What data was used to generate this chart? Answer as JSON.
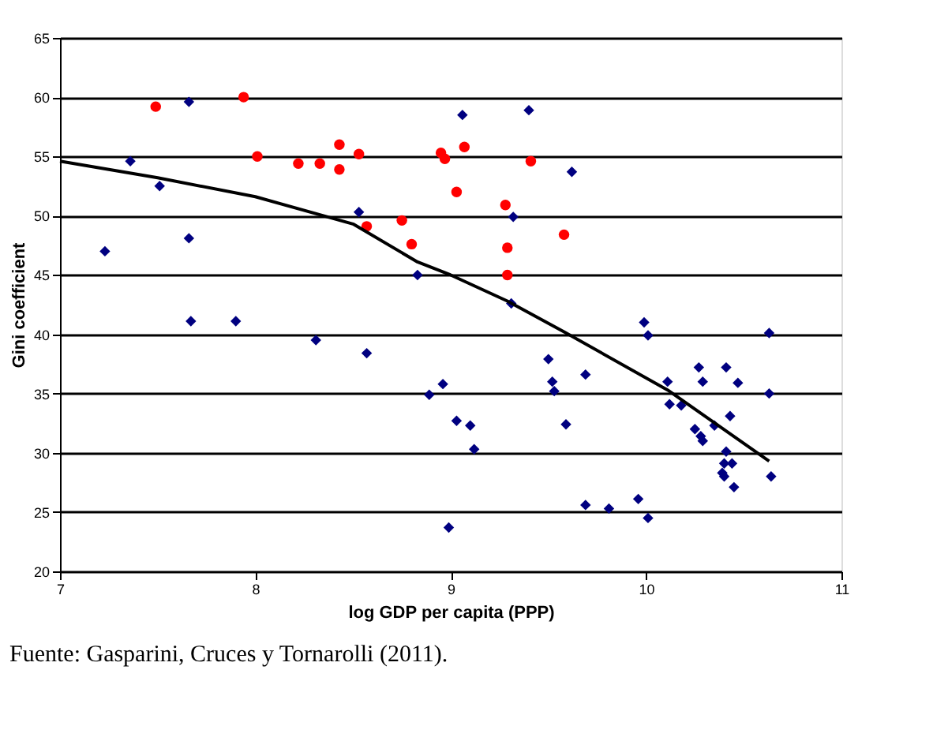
{
  "chart_data": {
    "type": "scatter",
    "xlabel": "log GDP per capita (PPP)",
    "ylabel": "Gini coefficient",
    "annotations": [
      "Fuente: Gasparini, Cruces y Tornarolli (2011)."
    ],
    "xlim": [
      7,
      11
    ],
    "xticks": [
      7,
      8,
      9,
      10,
      11
    ],
    "ylim": [
      20,
      65
    ],
    "yticks": [
      20,
      25,
      30,
      35,
      40,
      45,
      50,
      55,
      60,
      65
    ],
    "grid": "y",
    "series": [
      {
        "marker": "diamond",
        "color": "#000080",
        "x": [
          7.23,
          7.36,
          7.51,
          7.66,
          7.66,
          7.67,
          7.9,
          8.31,
          8.53,
          8.57,
          8.83,
          8.89,
          8.96,
          8.99,
          9.03,
          9.06,
          9.1,
          9.12,
          9.31,
          9.32,
          9.4,
          9.5,
          9.52,
          9.53,
          9.59,
          9.62,
          9.69,
          9.69,
          9.81,
          9.96,
          9.99,
          10.01,
          10.01,
          10.11,
          10.12,
          10.18,
          10.25,
          10.27,
          10.29,
          10.28,
          10.29,
          10.35,
          10.39,
          10.4,
          10.4,
          10.41,
          10.41,
          10.43,
          10.44,
          10.45,
          10.47,
          10.63,
          10.63,
          10.64
        ],
        "values": [
          47.0,
          54.6,
          52.5,
          59.6,
          48.1,
          41.1,
          41.1,
          39.5,
          50.3,
          38.4,
          45.0,
          34.9,
          35.8,
          23.7,
          32.7,
          58.5,
          32.3,
          30.3,
          42.6,
          49.9,
          58.9,
          37.9,
          36.0,
          35.2,
          32.4,
          53.7,
          36.6,
          25.6,
          25.3,
          26.1,
          41.0,
          39.9,
          24.5,
          36.0,
          34.1,
          34.0,
          32.0,
          37.2,
          36.0,
          31.4,
          31.0,
          32.3,
          28.3,
          29.1,
          28.0,
          37.2,
          30.1,
          33.1,
          29.1,
          27.1,
          35.9,
          40.1,
          35.0,
          28.0
        ]
      },
      {
        "marker": "circle",
        "color": "#ff0000",
        "x": [
          7.49,
          7.94,
          8.01,
          8.22,
          8.33,
          8.43,
          8.43,
          8.53,
          8.57,
          8.75,
          8.8,
          8.95,
          8.97,
          9.03,
          9.07,
          9.28,
          9.29,
          9.29,
          9.41,
          9.58
        ],
        "values": [
          59.2,
          60.0,
          55.0,
          54.4,
          54.4,
          56.0,
          53.9,
          55.2,
          49.1,
          49.6,
          47.6,
          55.3,
          54.8,
          52.0,
          55.8,
          50.9,
          47.3,
          45.0,
          54.6,
          48.4
        ]
      },
      {
        "type": "line",
        "marker": "none",
        "color": "#000000",
        "x": [
          7.0,
          7.5,
          8.0,
          8.5,
          8.83,
          9.0,
          9.29,
          9.58,
          10.11,
          10.63
        ],
        "values": [
          54.6,
          53.2,
          51.6,
          49.3,
          46.1,
          45.0,
          42.8,
          40.2,
          35.3,
          29.3
        ]
      }
    ]
  }
}
